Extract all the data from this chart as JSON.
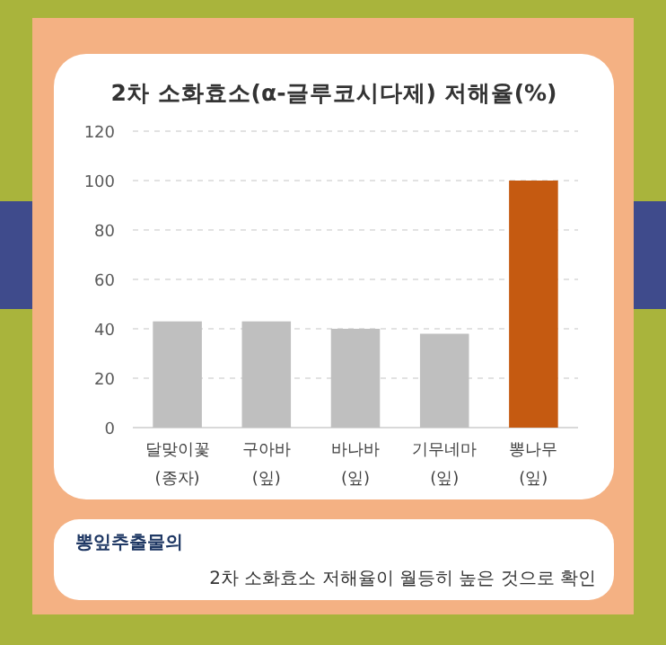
{
  "chart_data": {
    "type": "bar",
    "title": "2차 소화효소(α-글루코시다제) 저해율(%)",
    "categories": [
      "달맞이꽃\n(종자)",
      "구아바\n(잎)",
      "바나바\n(잎)",
      "기무네마\n(잎)",
      "뽕나무\n(잎)"
    ],
    "values": [
      43,
      43,
      40,
      38,
      100
    ],
    "colors": [
      "#bfbfbf",
      "#bfbfbf",
      "#bfbfbf",
      "#bfbfbf",
      "#c55a11"
    ],
    "ylim": [
      0,
      120
    ],
    "yticks": [
      0,
      20,
      40,
      60,
      80,
      100,
      120
    ],
    "grid": "y",
    "annotations": [
      "뽕잎추출물의",
      "2차 소화효소 저해율이 월등히 높은 것으로 확인"
    ]
  }
}
